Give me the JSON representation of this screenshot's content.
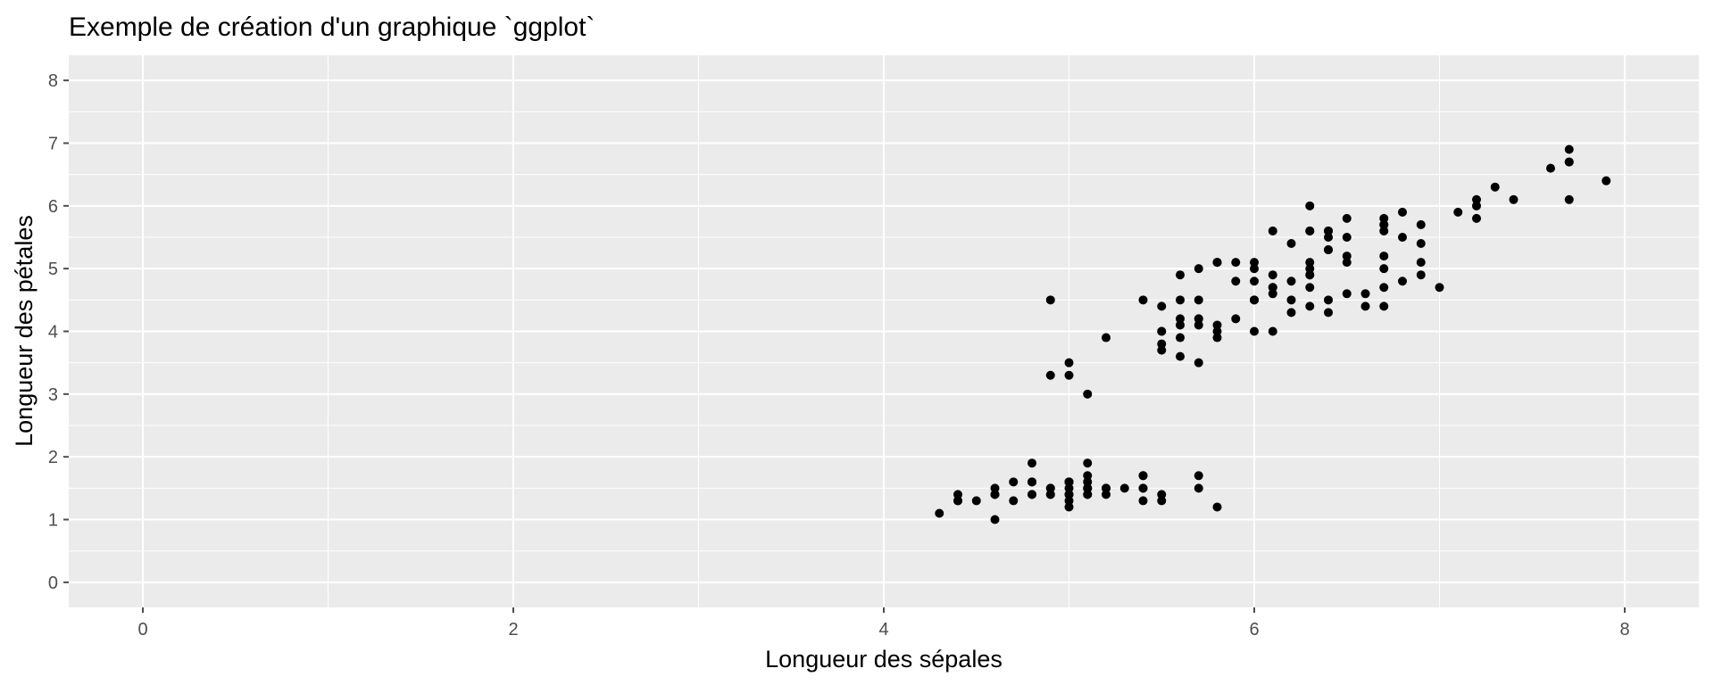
{
  "chart_data": {
    "type": "scatter",
    "title": "Exemple de création d'un graphique `ggplot`",
    "xlabel": "Longueur des sépales",
    "ylabel": "Longueur des pétales",
    "xlim": [
      -0.4,
      8.4
    ],
    "ylim": [
      -0.4,
      8.4
    ],
    "xticks": [
      "0",
      "2",
      "4",
      "6",
      "8"
    ],
    "yticks": [
      "0",
      "1",
      "2",
      "3",
      "4",
      "5",
      "6",
      "7",
      "8"
    ],
    "grid": true,
    "legend": "none",
    "colors": {
      "panel": "#ebebeb",
      "grid": "#ffffff",
      "point": "#000000",
      "tick": "#4d4d4d"
    },
    "series": [
      {
        "points": [
          [
            5.1,
            1.4
          ],
          [
            4.9,
            1.4
          ],
          [
            4.7,
            1.3
          ],
          [
            4.6,
            1.5
          ],
          [
            5.0,
            1.4
          ],
          [
            5.4,
            1.7
          ],
          [
            4.6,
            1.4
          ],
          [
            5.0,
            1.5
          ],
          [
            4.4,
            1.4
          ],
          [
            4.9,
            1.5
          ],
          [
            5.4,
            1.5
          ],
          [
            4.8,
            1.6
          ],
          [
            4.8,
            1.4
          ],
          [
            4.3,
            1.1
          ],
          [
            5.8,
            1.2
          ],
          [
            5.7,
            1.5
          ],
          [
            5.4,
            1.3
          ],
          [
            5.1,
            1.4
          ],
          [
            5.7,
            1.7
          ],
          [
            5.1,
            1.5
          ],
          [
            5.4,
            1.7
          ],
          [
            5.1,
            1.5
          ],
          [
            4.6,
            1.0
          ],
          [
            5.1,
            1.7
          ],
          [
            4.8,
            1.9
          ],
          [
            5.0,
            1.6
          ],
          [
            5.0,
            1.6
          ],
          [
            5.2,
            1.5
          ],
          [
            5.2,
            1.4
          ],
          [
            4.7,
            1.6
          ],
          [
            4.8,
            1.6
          ],
          [
            5.4,
            1.5
          ],
          [
            5.2,
            1.5
          ],
          [
            5.5,
            1.4
          ],
          [
            4.9,
            1.5
          ],
          [
            5.0,
            1.2
          ],
          [
            5.5,
            1.3
          ],
          [
            4.9,
            1.4
          ],
          [
            4.4,
            1.3
          ],
          [
            5.1,
            1.5
          ],
          [
            5.0,
            1.3
          ],
          [
            4.5,
            1.3
          ],
          [
            4.4,
            1.3
          ],
          [
            5.0,
            1.6
          ],
          [
            5.1,
            1.9
          ],
          [
            4.8,
            1.4
          ],
          [
            5.1,
            1.6
          ],
          [
            4.6,
            1.4
          ],
          [
            5.3,
            1.5
          ],
          [
            5.0,
            1.4
          ],
          [
            7.0,
            4.7
          ],
          [
            6.4,
            4.5
          ],
          [
            6.9,
            4.9
          ],
          [
            5.5,
            4.0
          ],
          [
            6.5,
            4.6
          ],
          [
            5.7,
            4.5
          ],
          [
            6.3,
            4.7
          ],
          [
            4.9,
            3.3
          ],
          [
            6.6,
            4.6
          ],
          [
            5.2,
            3.9
          ],
          [
            5.0,
            3.5
          ],
          [
            5.9,
            4.2
          ],
          [
            6.0,
            4.0
          ],
          [
            6.1,
            4.7
          ],
          [
            5.6,
            3.6
          ],
          [
            6.7,
            4.4
          ],
          [
            5.6,
            4.5
          ],
          [
            5.8,
            4.1
          ],
          [
            6.2,
            4.5
          ],
          [
            5.6,
            3.9
          ],
          [
            5.9,
            4.8
          ],
          [
            6.1,
            4.0
          ],
          [
            6.3,
            4.9
          ],
          [
            6.1,
            4.7
          ],
          [
            6.4,
            4.3
          ],
          [
            6.6,
            4.4
          ],
          [
            6.8,
            4.8
          ],
          [
            6.7,
            5.0
          ],
          [
            6.0,
            4.5
          ],
          [
            5.7,
            3.5
          ],
          [
            5.5,
            3.8
          ],
          [
            5.5,
            3.7
          ],
          [
            5.8,
            3.9
          ],
          [
            6.0,
            5.1
          ],
          [
            5.4,
            4.5
          ],
          [
            6.0,
            4.5
          ],
          [
            6.7,
            4.7
          ],
          [
            6.3,
            4.4
          ],
          [
            5.6,
            4.1
          ],
          [
            5.5,
            4.0
          ],
          [
            5.5,
            4.4
          ],
          [
            6.1,
            4.6
          ],
          [
            5.8,
            4.0
          ],
          [
            5.0,
            3.3
          ],
          [
            5.6,
            4.2
          ],
          [
            5.7,
            4.2
          ],
          [
            5.7,
            4.2
          ],
          [
            6.2,
            4.3
          ],
          [
            5.1,
            3.0
          ],
          [
            5.7,
            4.1
          ],
          [
            6.3,
            6.0
          ],
          [
            5.8,
            5.1
          ],
          [
            7.1,
            5.9
          ],
          [
            6.3,
            5.6
          ],
          [
            6.5,
            5.8
          ],
          [
            7.6,
            6.6
          ],
          [
            4.9,
            4.5
          ],
          [
            7.3,
            6.3
          ],
          [
            6.7,
            5.8
          ],
          [
            7.2,
            6.1
          ],
          [
            6.5,
            5.1
          ],
          [
            6.4,
            5.3
          ],
          [
            6.8,
            5.5
          ],
          [
            5.7,
            5.0
          ],
          [
            5.8,
            5.1
          ],
          [
            6.4,
            5.3
          ],
          [
            6.5,
            5.5
          ],
          [
            7.7,
            6.7
          ],
          [
            7.7,
            6.9
          ],
          [
            6.0,
            5.0
          ],
          [
            6.9,
            5.7
          ],
          [
            5.6,
            4.9
          ],
          [
            7.7,
            6.7
          ],
          [
            6.3,
            4.9
          ],
          [
            6.7,
            5.7
          ],
          [
            7.2,
            6.0
          ],
          [
            6.2,
            4.8
          ],
          [
            6.1,
            4.9
          ],
          [
            6.4,
            5.6
          ],
          [
            7.2,
            5.8
          ],
          [
            7.4,
            6.1
          ],
          [
            7.9,
            6.4
          ],
          [
            6.4,
            5.6
          ],
          [
            6.3,
            5.1
          ],
          [
            6.1,
            5.6
          ],
          [
            7.7,
            6.1
          ],
          [
            6.3,
            5.6
          ],
          [
            6.4,
            5.5
          ],
          [
            6.0,
            4.8
          ],
          [
            6.9,
            5.4
          ],
          [
            6.7,
            5.6
          ],
          [
            6.9,
            5.1
          ],
          [
            5.8,
            5.1
          ],
          [
            6.8,
            5.9
          ],
          [
            6.7,
            5.7
          ],
          [
            6.7,
            5.2
          ],
          [
            6.3,
            5.0
          ],
          [
            6.5,
            5.2
          ],
          [
            6.2,
            5.4
          ],
          [
            5.9,
            5.1
          ]
        ]
      }
    ]
  }
}
